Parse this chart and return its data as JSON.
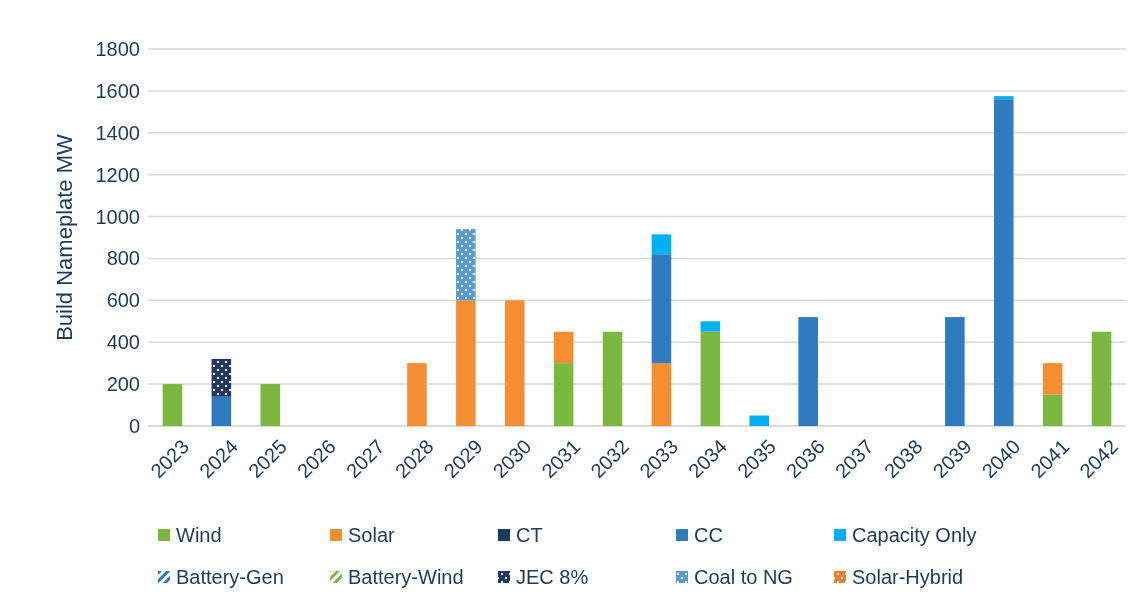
{
  "chart_data": {
    "type": "bar",
    "stacked": true,
    "ylabel": "Build Nameplate MW",
    "categories": [
      "2023",
      "2024",
      "2025",
      "2026",
      "2027",
      "2028",
      "2029",
      "2030",
      "2031",
      "2032",
      "2033",
      "2034",
      "2035",
      "2036",
      "2037",
      "2038",
      "2039",
      "2040",
      "2041",
      "2042"
    ],
    "series": [
      {
        "name": "Wind",
        "color": "#7ab840",
        "values": [
          200,
          0,
          200,
          0,
          0,
          0,
          0,
          0,
          300,
          450,
          0,
          450,
          0,
          0,
          0,
          0,
          0,
          0,
          150,
          450
        ]
      },
      {
        "name": "Solar",
        "color": "#f58d32",
        "values": [
          0,
          0,
          0,
          0,
          0,
          300,
          600,
          600,
          150,
          0,
          300,
          0,
          0,
          0,
          0,
          0,
          0,
          0,
          150,
          0
        ]
      },
      {
        "name": "CT",
        "color": "#1b3a5c",
        "values": [
          0,
          0,
          0,
          0,
          0,
          0,
          0,
          0,
          0,
          0,
          0,
          0,
          0,
          0,
          0,
          0,
          0,
          0,
          0,
          0
        ]
      },
      {
        "name": "CC",
        "color": "#2f7bbf",
        "values": [
          0,
          140,
          0,
          0,
          0,
          0,
          0,
          0,
          0,
          0,
          520,
          0,
          0,
          520,
          0,
          0,
          520,
          1560,
          0,
          0
        ]
      },
      {
        "name": "Capacity Only",
        "color": "#00b0f0",
        "values": [
          0,
          0,
          0,
          0,
          0,
          0,
          0,
          0,
          0,
          0,
          95,
          50,
          50,
          0,
          0,
          0,
          0,
          15,
          0,
          0
        ]
      },
      {
        "name": "Battery-Gen",
        "color": "#2f7bbf",
        "values": [
          0,
          0,
          0,
          0,
          0,
          0,
          0,
          0,
          0,
          0,
          0,
          0,
          0,
          0,
          0,
          0,
          0,
          0,
          0,
          0
        ]
      },
      {
        "name": "Battery-Wind",
        "color": "#7ab840",
        "values": [
          0,
          0,
          0,
          0,
          0,
          0,
          0,
          0,
          0,
          0,
          0,
          0,
          0,
          0,
          0,
          0,
          0,
          0,
          0,
          0
        ]
      },
      {
        "name": "JEC 8%",
        "color": "#1f3864",
        "values": [
          0,
          180,
          0,
          0,
          0,
          0,
          0,
          0,
          0,
          0,
          0,
          0,
          0,
          0,
          0,
          0,
          0,
          0,
          0,
          0
        ]
      },
      {
        "name": "Coal to NG",
        "color": "#5b9bd5",
        "values": [
          0,
          0,
          0,
          0,
          0,
          0,
          340,
          0,
          0,
          0,
          0,
          0,
          0,
          0,
          0,
          0,
          0,
          0,
          0,
          0
        ]
      },
      {
        "name": "Solar-Hybrid",
        "color": "#ed7d31",
        "values": [
          0,
          0,
          0,
          0,
          0,
          0,
          0,
          0,
          0,
          0,
          0,
          0,
          0,
          0,
          0,
          0,
          0,
          0,
          0,
          0
        ]
      }
    ],
    "ylim": [
      0,
      1800
    ],
    "yticks": [
      0,
      200,
      400,
      600,
      800,
      1000,
      1200,
      1400,
      1600,
      1800
    ],
    "grid": "y",
    "legend": "bottom"
  }
}
